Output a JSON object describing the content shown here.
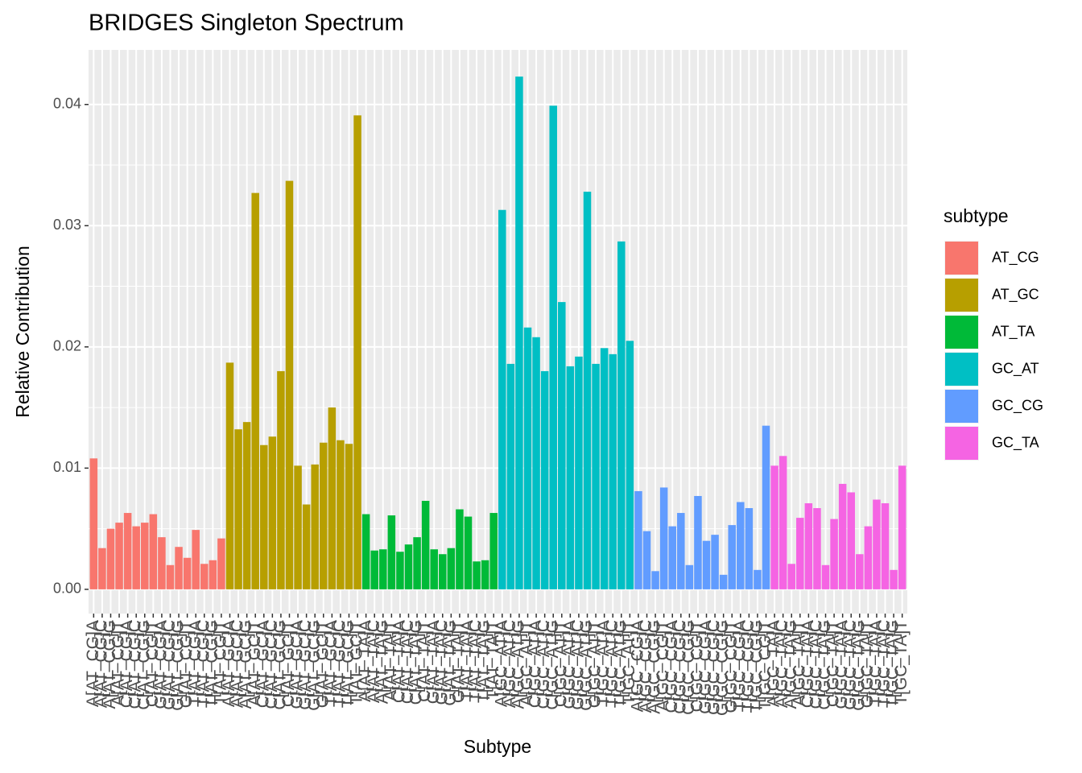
{
  "chart_data": {
    "type": "bar",
    "title": "BRIDGES Singleton Spectrum",
    "x_label": "Subtype",
    "y_label": "Relative Contribution",
    "legend_title": "subtype",
    "legend_position": "right",
    "grid": true,
    "categories": [
      "A[AT_CG]A",
      "A[AT_CG]C",
      "A[AT_CG]G",
      "A[AT_CG]T",
      "C[AT_CG]A",
      "C[AT_CG]C",
      "C[AT_CG]G",
      "C[AT_CG]T",
      "G[AT_CG]A",
      "G[AT_CG]C",
      "G[AT_CG]G",
      "G[AT_CG]T",
      "T[AT_CG]A",
      "T[AT_CG]C",
      "T[AT_CG]G",
      "T[AT_CG]T",
      "A[AT_GC]A",
      "A[AT_GC]C",
      "A[AT_GC]G",
      "A[AT_GC]T",
      "C[AT_GC]A",
      "C[AT_GC]C",
      "C[AT_GC]G",
      "C[AT_GC]T",
      "G[AT_GC]A",
      "G[AT_GC]C",
      "G[AT_GC]G",
      "G[AT_GC]T",
      "T[AT_GC]A",
      "T[AT_GC]C",
      "T[AT_GC]G",
      "T[AT_GC]T",
      "A[AT_TA]A",
      "A[AT_TA]C",
      "A[AT_TA]G",
      "A[AT_TA]T",
      "C[AT_TA]A",
      "C[AT_TA]C",
      "C[AT_TA]G",
      "C[AT_TA]T",
      "G[AT_TA]A",
      "G[AT_TA]C",
      "G[AT_TA]G",
      "G[AT_TA]T",
      "T[AT_TA]A",
      "T[AT_TA]C",
      "T[AT_TA]G",
      "T[AT_TA]T",
      "A[GC_AT]A",
      "A[GC_AT]C",
      "A[GC_AT]G",
      "A[GC_AT]T",
      "C[GC_AT]A",
      "C[GC_AT]C",
      "C[GC_AT]G",
      "C[GC_AT]T",
      "G[GC_AT]A",
      "G[GC_AT]C",
      "G[GC_AT]G",
      "G[GC_AT]T",
      "T[GC_AT]A",
      "T[GC_AT]C",
      "T[GC_AT]G",
      "T[GC_AT]T",
      "A[GC_CG]A",
      "A[GC_CG]C",
      "A[GC_CG]G",
      "A[GC_CG]T",
      "C[GC_CG]A",
      "C[GC_CG]C",
      "C[GC_CG]G",
      "C[GC_CG]T",
      "G[GC_CG]A",
      "G[GC_CG]C",
      "G[GC_CG]G",
      "G[GC_CG]T",
      "T[GC_CG]A",
      "T[GC_CG]C",
      "T[GC_CG]G",
      "T[GC_CG]T",
      "A[GC_TA]A",
      "A[GC_TA]C",
      "A[GC_TA]G",
      "A[GC_TA]T",
      "C[GC_TA]A",
      "C[GC_TA]C",
      "C[GC_TA]G",
      "C[GC_TA]T",
      "G[GC_TA]A",
      "G[GC_TA]C",
      "G[GC_TA]G",
      "G[GC_TA]T",
      "T[GC_TA]A",
      "T[GC_TA]C",
      "T[GC_TA]G",
      "T[GC_TA]T"
    ],
    "series": [
      {
        "name": "AT_CG",
        "color": "#F8766D",
        "values": [
          0.0108,
          0.0034,
          0.005,
          0.0055,
          0.0063,
          0.0052,
          0.0055,
          0.0062,
          0.0043,
          0.002,
          0.0035,
          0.0026,
          0.0049,
          0.0021,
          0.0024,
          0.0042,
          null,
          null,
          null,
          null,
          null,
          null,
          null,
          null,
          null,
          null,
          null,
          null,
          null,
          null,
          null,
          null,
          null,
          null,
          null,
          null,
          null,
          null,
          null,
          null,
          null,
          null,
          null,
          null,
          null,
          null,
          null,
          null,
          null,
          null,
          null,
          null,
          null,
          null,
          null,
          null,
          null,
          null,
          null,
          null,
          null,
          null,
          null,
          null,
          null,
          null,
          null,
          null,
          null,
          null,
          null,
          null,
          null,
          null,
          null,
          null,
          null,
          null,
          null,
          null,
          null,
          null,
          null,
          null,
          null,
          null,
          null,
          null,
          null,
          null,
          null,
          null,
          null,
          null,
          null,
          null
        ]
      },
      {
        "name": "AT_GC",
        "color": "#B79F00",
        "values": [
          null,
          null,
          null,
          null,
          null,
          null,
          null,
          null,
          null,
          null,
          null,
          null,
          null,
          null,
          null,
          null,
          0.0187,
          0.0132,
          0.0138,
          0.0327,
          0.0119,
          0.0126,
          0.018,
          0.0337,
          0.0102,
          0.007,
          0.0103,
          0.0121,
          0.015,
          0.0123,
          0.012,
          0.0391,
          null,
          null,
          null,
          null,
          null,
          null,
          null,
          null,
          null,
          null,
          null,
          null,
          null,
          null,
          null,
          null,
          null,
          null,
          null,
          null,
          null,
          null,
          null,
          null,
          null,
          null,
          null,
          null,
          null,
          null,
          null,
          null,
          null,
          null,
          null,
          null,
          null,
          null,
          null,
          null,
          null,
          null,
          null,
          null,
          null,
          null,
          null,
          null,
          null,
          null,
          null,
          null,
          null,
          null,
          null,
          null,
          null,
          null,
          null,
          null,
          null,
          null,
          null,
          null
        ]
      },
      {
        "name": "AT_TA",
        "color": "#00BA38",
        "values": [
          null,
          null,
          null,
          null,
          null,
          null,
          null,
          null,
          null,
          null,
          null,
          null,
          null,
          null,
          null,
          null,
          null,
          null,
          null,
          null,
          null,
          null,
          null,
          null,
          null,
          null,
          null,
          null,
          null,
          null,
          null,
          null,
          0.0062,
          0.0032,
          0.0033,
          0.0061,
          0.0031,
          0.0037,
          0.0043,
          0.0073,
          0.0033,
          0.0029,
          0.0034,
          0.0066,
          0.006,
          0.0023,
          0.0024,
          0.0063,
          null,
          null,
          null,
          null,
          null,
          null,
          null,
          null,
          null,
          null,
          null,
          null,
          null,
          null,
          null,
          null,
          null,
          null,
          null,
          null,
          null,
          null,
          null,
          null,
          null,
          null,
          null,
          null,
          null,
          null,
          null,
          null,
          null,
          null,
          null,
          null,
          null,
          null,
          null,
          null,
          null,
          null,
          null,
          null,
          null,
          null,
          null,
          null
        ]
      },
      {
        "name": "GC_AT",
        "color": "#00BFC4",
        "values": [
          null,
          null,
          null,
          null,
          null,
          null,
          null,
          null,
          null,
          null,
          null,
          null,
          null,
          null,
          null,
          null,
          null,
          null,
          null,
          null,
          null,
          null,
          null,
          null,
          null,
          null,
          null,
          null,
          null,
          null,
          null,
          null,
          null,
          null,
          null,
          null,
          null,
          null,
          null,
          null,
          null,
          null,
          null,
          null,
          null,
          null,
          null,
          null,
          0.0313,
          0.0186,
          0.0423,
          0.0216,
          0.0208,
          0.018,
          0.0399,
          0.0237,
          0.0184,
          0.0192,
          0.0328,
          0.0186,
          0.0199,
          0.0194,
          0.0287,
          0.0205,
          null,
          null,
          null,
          null,
          null,
          null,
          null,
          null,
          null,
          null,
          null,
          null,
          null,
          null,
          null,
          null,
          null,
          null,
          null,
          null,
          null,
          null,
          null,
          null,
          null,
          null,
          null,
          null,
          null,
          null,
          null,
          null
        ]
      },
      {
        "name": "GC_CG",
        "color": "#619CFF",
        "values": [
          null,
          null,
          null,
          null,
          null,
          null,
          null,
          null,
          null,
          null,
          null,
          null,
          null,
          null,
          null,
          null,
          null,
          null,
          null,
          null,
          null,
          null,
          null,
          null,
          null,
          null,
          null,
          null,
          null,
          null,
          null,
          null,
          null,
          null,
          null,
          null,
          null,
          null,
          null,
          null,
          null,
          null,
          null,
          null,
          null,
          null,
          null,
          null,
          null,
          null,
          null,
          null,
          null,
          null,
          null,
          null,
          null,
          null,
          null,
          null,
          null,
          null,
          null,
          null,
          0.0081,
          0.0048,
          0.0015,
          0.0084,
          0.0052,
          0.0063,
          0.002,
          0.0077,
          0.004,
          0.0045,
          0.0012,
          0.0053,
          0.0072,
          0.0067,
          0.0016,
          0.0135,
          null,
          null,
          null,
          null,
          null,
          null,
          null,
          null,
          null,
          null,
          null,
          null,
          null,
          null,
          null,
          null
        ]
      },
      {
        "name": "GC_TA",
        "color": "#F564E3",
        "values": [
          null,
          null,
          null,
          null,
          null,
          null,
          null,
          null,
          null,
          null,
          null,
          null,
          null,
          null,
          null,
          null,
          null,
          null,
          null,
          null,
          null,
          null,
          null,
          null,
          null,
          null,
          null,
          null,
          null,
          null,
          null,
          null,
          null,
          null,
          null,
          null,
          null,
          null,
          null,
          null,
          null,
          null,
          null,
          null,
          null,
          null,
          null,
          null,
          null,
          null,
          null,
          null,
          null,
          null,
          null,
          null,
          null,
          null,
          null,
          null,
          null,
          null,
          null,
          null,
          null,
          null,
          null,
          null,
          null,
          null,
          null,
          null,
          null,
          null,
          null,
          null,
          null,
          null,
          null,
          null,
          0.0102,
          0.011,
          0.0021,
          0.0059,
          0.0071,
          0.0067,
          0.002,
          0.0058,
          0.0087,
          0.008,
          0.0029,
          0.0052,
          0.0074,
          0.0071,
          0.0016,
          0.0102
        ]
      }
    ],
    "ylim": [
      -0.002,
      0.0445
    ],
    "yticks": [
      {
        "value": 0,
        "label": "0.00"
      },
      0.01,
      0.02,
      0.03,
      0.04
    ]
  }
}
